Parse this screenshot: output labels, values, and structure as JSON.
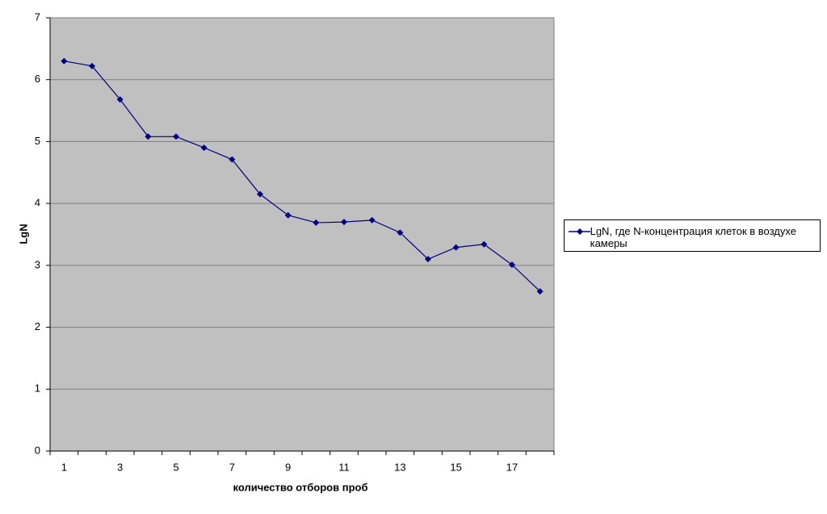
{
  "chart_data": {
    "type": "line",
    "x_label": "количество отборов проб",
    "y_label": "LgN",
    "categories": [
      1,
      null,
      3,
      null,
      5,
      null,
      7,
      null,
      9,
      null,
      11,
      null,
      13,
      null,
      15,
      null,
      17,
      null
    ],
    "series": [
      {
        "name": "LgN, где N-концентрация клеток в воздухе камеры",
        "color": "#000080",
        "values": [
          6.3,
          6.22,
          5.68,
          5.08,
          5.08,
          4.9,
          4.71,
          4.15,
          3.81,
          3.69,
          3.7,
          3.73,
          3.53,
          3.1,
          3.29,
          3.34,
          3.01,
          2.58
        ]
      }
    ],
    "ylim": [
      0,
      7
    ],
    "yticks": [
      0,
      1,
      2,
      3,
      4,
      5,
      6,
      7
    ],
    "grid": true,
    "legend": "right"
  }
}
